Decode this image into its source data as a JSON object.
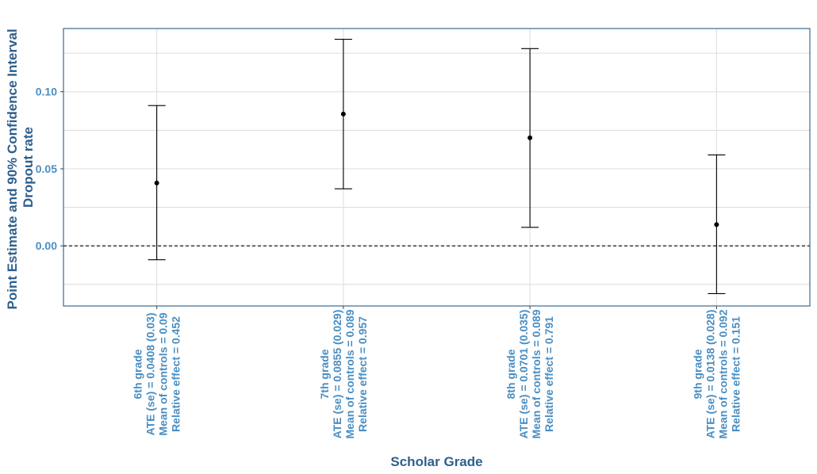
{
  "colors": {
    "axis_text": "#4a8ec2",
    "axis_title": "#2e5f8e",
    "panel_border": "#3a6b94",
    "grid": "#dcdcdc",
    "marks": "#000000"
  },
  "chart_data": {
    "type": "errorbar",
    "ylabel_lines": [
      "Point Estimate and 90% Confidence Interval",
      "Dropout rate"
    ],
    "xlabel": "Scholar Grade",
    "ylim": [
      -0.039,
      0.141
    ],
    "yticks": [
      0.0,
      0.05,
      0.1
    ],
    "ytick_labels": [
      "0.00",
      "0.05",
      "0.10"
    ],
    "grid": true,
    "reference_line": 0,
    "categories": [
      {
        "label_lines": [
          "6th grade",
          "ATE (se) = 0.0408 (0.03)",
          "Mean of controls = 0.09",
          "Relative effect = 0.452"
        ],
        "estimate": 0.0408,
        "lower": -0.009,
        "upper": 0.091
      },
      {
        "label_lines": [
          "7th grade",
          "ATE (se) = 0.0855 (0.029)",
          "Mean of controls = 0.089",
          "Relative effect = 0.957"
        ],
        "estimate": 0.0855,
        "lower": 0.037,
        "upper": 0.134
      },
      {
        "label_lines": [
          "8th grade",
          "ATE (se) = 0.0701 (0.035)",
          "Mean of controls = 0.089",
          "Relative effect = 0.791"
        ],
        "estimate": 0.0701,
        "lower": 0.012,
        "upper": 0.128
      },
      {
        "label_lines": [
          "9th grade",
          "ATE (se) = 0.0138 (0.028)",
          "Mean of controls = 0.092",
          "Relative effect = 0.151"
        ],
        "estimate": 0.0138,
        "lower": -0.031,
        "upper": 0.059
      }
    ]
  }
}
